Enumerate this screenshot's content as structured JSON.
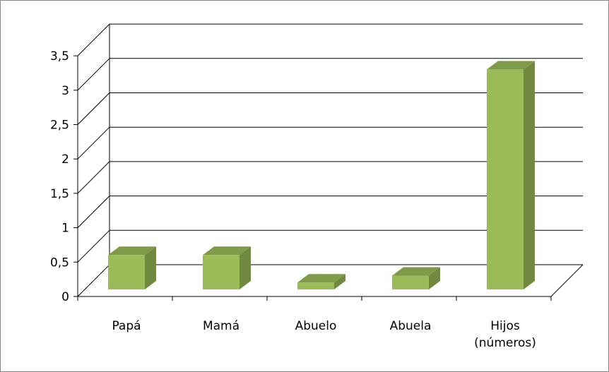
{
  "chart_data": {
    "type": "bar",
    "style": "3d-column",
    "categories": [
      "Papá",
      "Mamá",
      "Abuelo",
      "Abuela",
      "Hijos\n(números)"
    ],
    "values": [
      0.5,
      0.5,
      0.1,
      0.2,
      3.2
    ],
    "ylim": [
      0,
      3.5
    ],
    "yticks": [
      0,
      0.5,
      1,
      1.5,
      2,
      2.5,
      3,
      3.5
    ],
    "ytick_labels": [
      "0",
      "0,5",
      "1",
      "1,5",
      "2",
      "2,5",
      "3",
      "3,5"
    ],
    "grid": true,
    "legend": "none",
    "title": "",
    "xlabel": "",
    "ylabel": ""
  },
  "colors": {
    "bar_front": "#9bbb59",
    "bar_side": "#71893f",
    "bar_top": "#7f9a48",
    "grid": "#000000",
    "frame": "#868686"
  }
}
